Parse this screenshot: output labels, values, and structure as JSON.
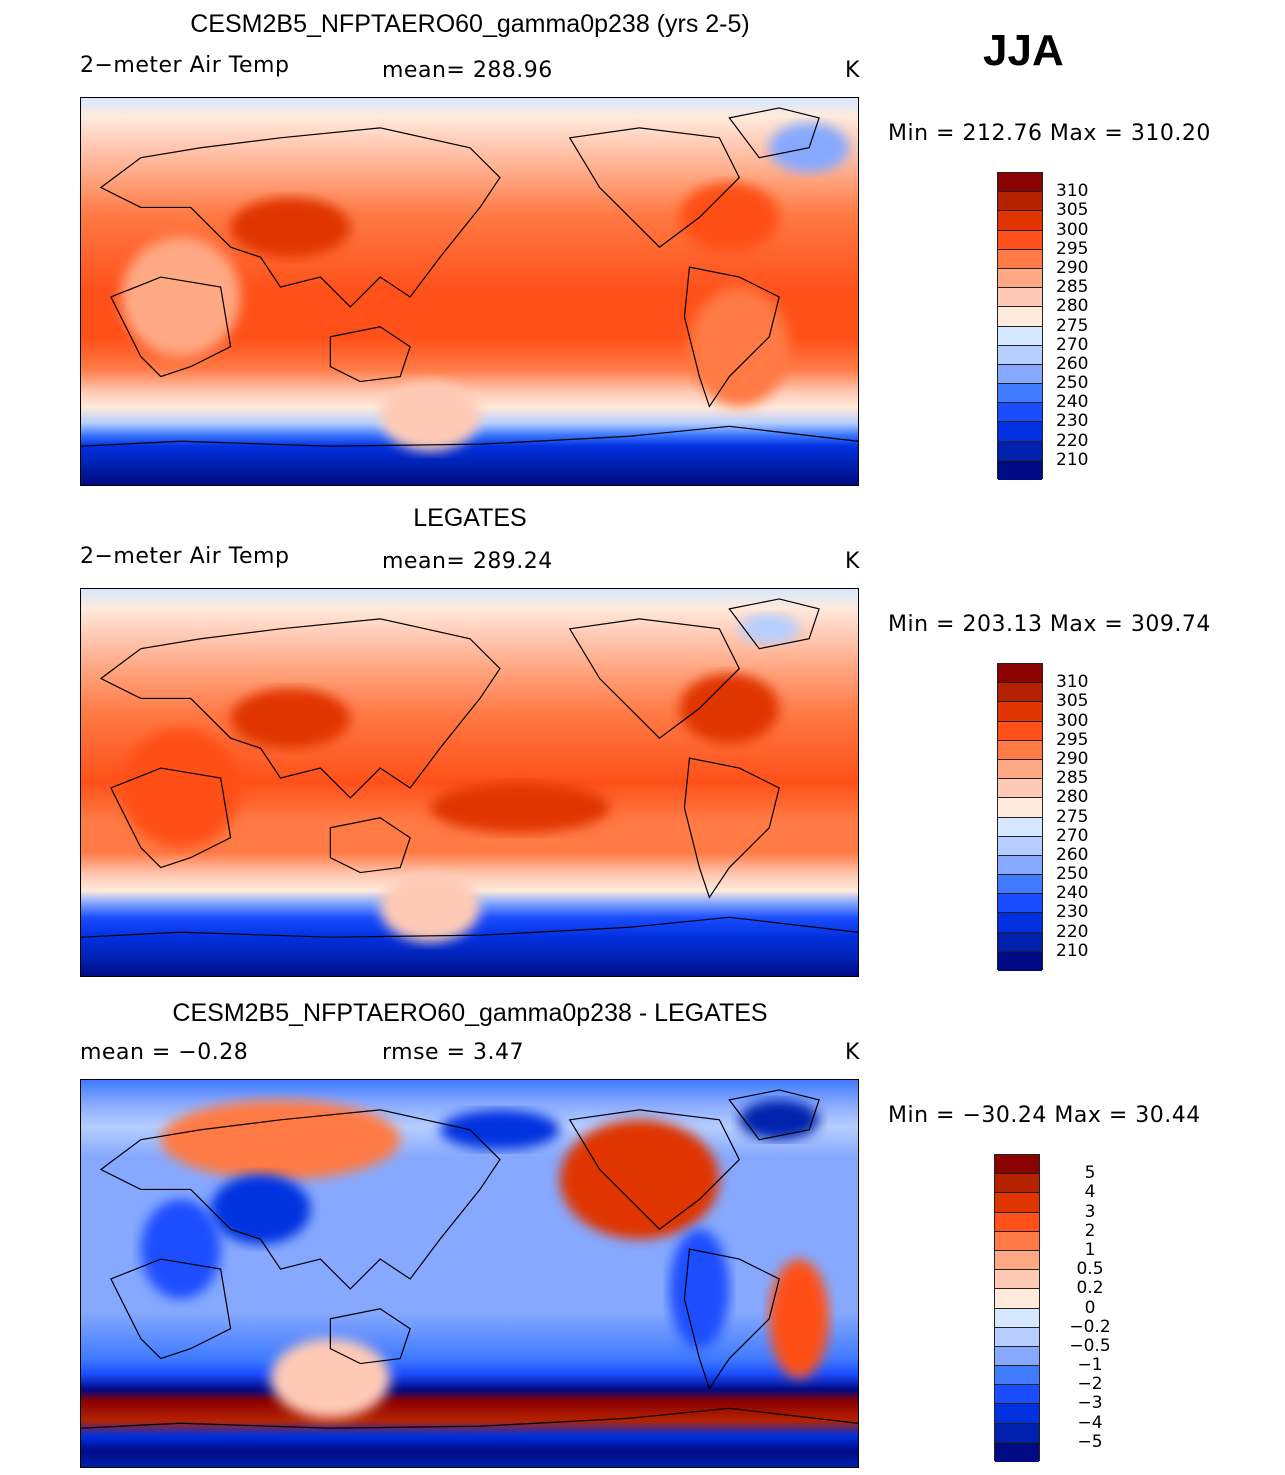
{
  "season": "JJA",
  "colors": [
    "#8b0000",
    "#b52200",
    "#e03500",
    "#ff5019",
    "#ff7a45",
    "#ffa884",
    "#ffcab5",
    "#ffeadb",
    "#d6e8ff",
    "#b6ceff",
    "#86a9ff",
    "#3f7aff",
    "#1a4dff",
    "#0030e0",
    "#0020ad",
    "#000a85"
  ],
  "panels": [
    {
      "title": "CESM2B5_NFPTAERO60_gamma0p238 (yrs 2-5)",
      "left_label": "2−meter Air Temp",
      "center_label": "mean=  288.96",
      "units": "K",
      "minmax": "Min  =  212.76  Max  =  310.20",
      "levels": [
        "310",
        "305",
        "300",
        "295",
        "290",
        "285",
        "280",
        "275",
        "270",
        "260",
        "250",
        "240",
        "230",
        "220",
        "210"
      ]
    },
    {
      "title": "LEGATES",
      "left_label": "2−meter Air Temp",
      "center_label": "mean=  289.24",
      "units": "K",
      "minmax": "Min  =  203.13  Max  =  309.74",
      "levels": [
        "310",
        "305",
        "300",
        "295",
        "290",
        "285",
        "280",
        "275",
        "270",
        "260",
        "250",
        "240",
        "230",
        "220",
        "210"
      ]
    },
    {
      "title": "CESM2B5_NFPTAERO60_gamma0p238 - LEGATES",
      "left_label": "mean  =    −0.28",
      "center_label": "rmse  =     3.47",
      "units": "K",
      "minmax": "Min  =  −30.24  Max  =    30.44",
      "levels": [
        "5",
        "4",
        "3",
        "2",
        "1",
        "0.5",
        "0.2",
        "0",
        "−0.2",
        "−0.5",
        "−1",
        "−2",
        "−3",
        "−4",
        "−5"
      ]
    }
  ],
  "chart_data": [
    {
      "type": "heatmap",
      "title": "CESM2B5_NFPTAERO60_gamma0p238 (yrs 2-5)",
      "variable": "2-meter Air Temp",
      "units": "K",
      "mean": 288.96,
      "min": 212.76,
      "max": 310.2,
      "contour_levels": [
        210,
        220,
        230,
        240,
        250,
        260,
        270,
        275,
        280,
        285,
        290,
        295,
        300,
        305,
        310
      ]
    },
    {
      "type": "heatmap",
      "title": "LEGATES",
      "variable": "2-meter Air Temp",
      "units": "K",
      "mean": 289.24,
      "min": 203.13,
      "max": 309.74,
      "contour_levels": [
        210,
        220,
        230,
        240,
        250,
        260,
        270,
        275,
        280,
        285,
        290,
        295,
        300,
        305,
        310
      ]
    },
    {
      "type": "heatmap",
      "title": "CESM2B5_NFPTAERO60_gamma0p238 - LEGATES",
      "units": "K",
      "mean": -0.28,
      "rmse": 3.47,
      "min": -30.24,
      "max": 30.44,
      "contour_levels": [
        -5,
        -4,
        -3,
        -2,
        -1,
        -0.5,
        -0.2,
        0,
        0.2,
        0.5,
        1,
        2,
        3,
        4,
        5
      ]
    }
  ]
}
